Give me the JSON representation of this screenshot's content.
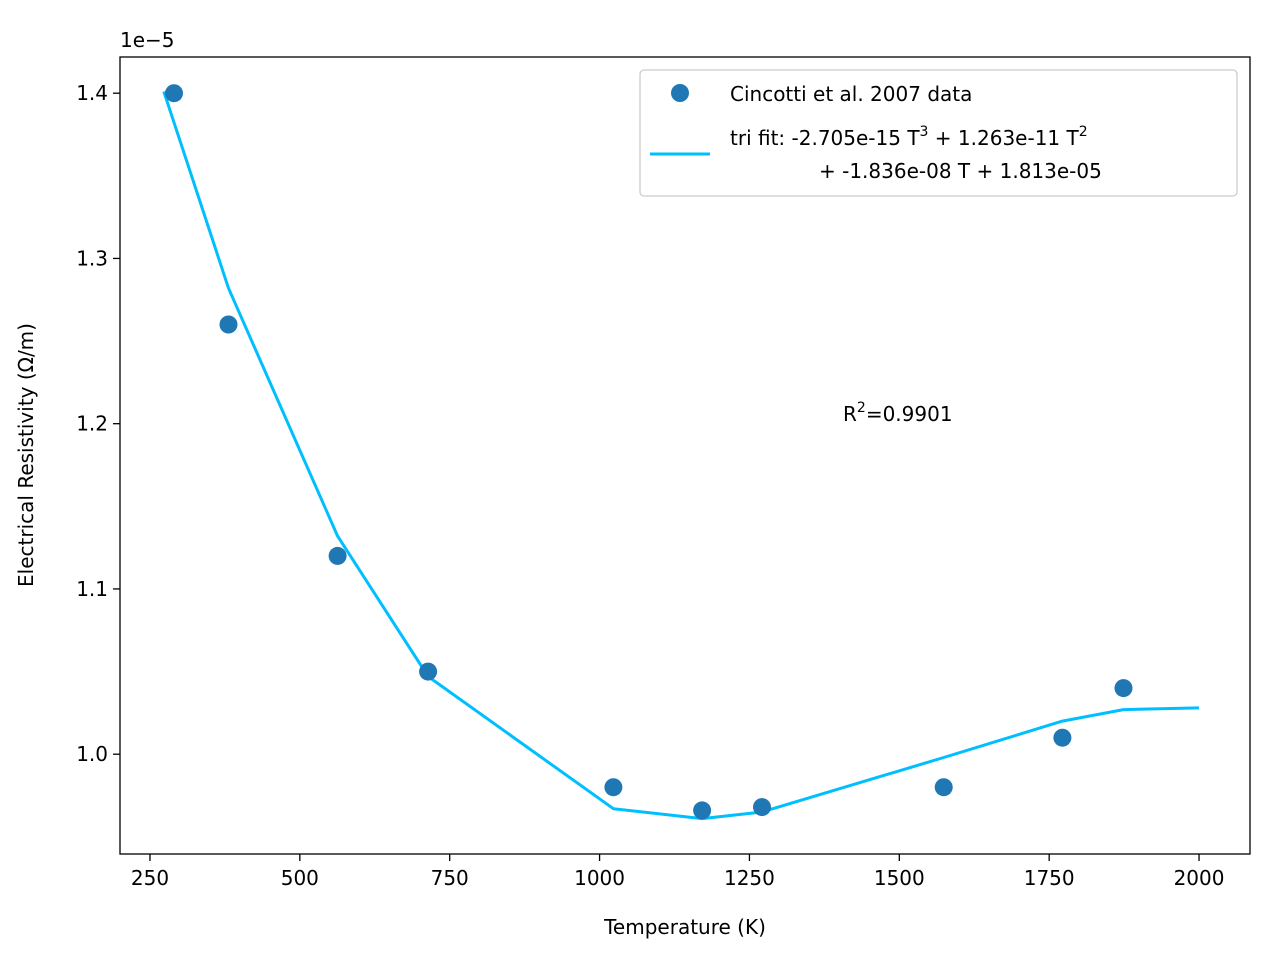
{
  "chart_data": {
    "type": "scatter",
    "xlabel": "Temperature (K)",
    "ylabel": "Electrical Resistivity (Ω/m)",
    "y_offset_label": "1e−5",
    "xlim": [
      200,
      2085
    ],
    "ylim": [
      9.396e-06,
      1.4219e-05
    ],
    "x_ticks": [
      250,
      500,
      750,
      1000,
      1250,
      1500,
      1750,
      2000
    ],
    "y_ticks": [
      1.0,
      1.1,
      1.2,
      1.3,
      1.4
    ],
    "grid": false,
    "legend_position": "upper right",
    "series": [
      {
        "name": "Cincotti et al. 2007 data",
        "kind": "scatter",
        "color": "#1f77b4",
        "x": [
          290,
          381,
          563,
          714,
          1023,
          1171,
          1271,
          1574,
          1772,
          1874
        ],
        "y": [
          1.4e-05,
          1.26e-05,
          1.12e-05,
          1.05e-05,
          9.8e-06,
          9.66e-06,
          9.68e-06,
          9.8e-06,
          1.01e-05,
          1.04e-05
        ]
      },
      {
        "name": "tri fit: -2.705e-15 T³ + 1.263e-11 T² + -1.836e-08 T + 1.813e-05",
        "legend_line1": "tri fit: -2.705e-15 T",
        "legend_line1_mid": " + 1.263e-11 T",
        "legend_line2": "+ -1.836e-08 T + 1.813e-05",
        "kind": "line",
        "color": "#00bfff",
        "x": [
          273,
          381,
          563,
          714,
          1023,
          1171,
          1271,
          1574,
          1772,
          1874,
          2000
        ],
        "y": [
          1.401e-05,
          1.282e-05,
          1.132e-05,
          1.047e-05,
          9.67e-06,
          9.61e-06,
          9.65e-06,
          9.98e-06,
          1.02e-05,
          1.027e-05,
          1.028e-05
        ]
      }
    ],
    "annotations": [
      {
        "text": "R",
        "sup": "2",
        "rest": "=0.9901",
        "x": 1400,
        "y": 1.2e-05
      }
    ]
  }
}
